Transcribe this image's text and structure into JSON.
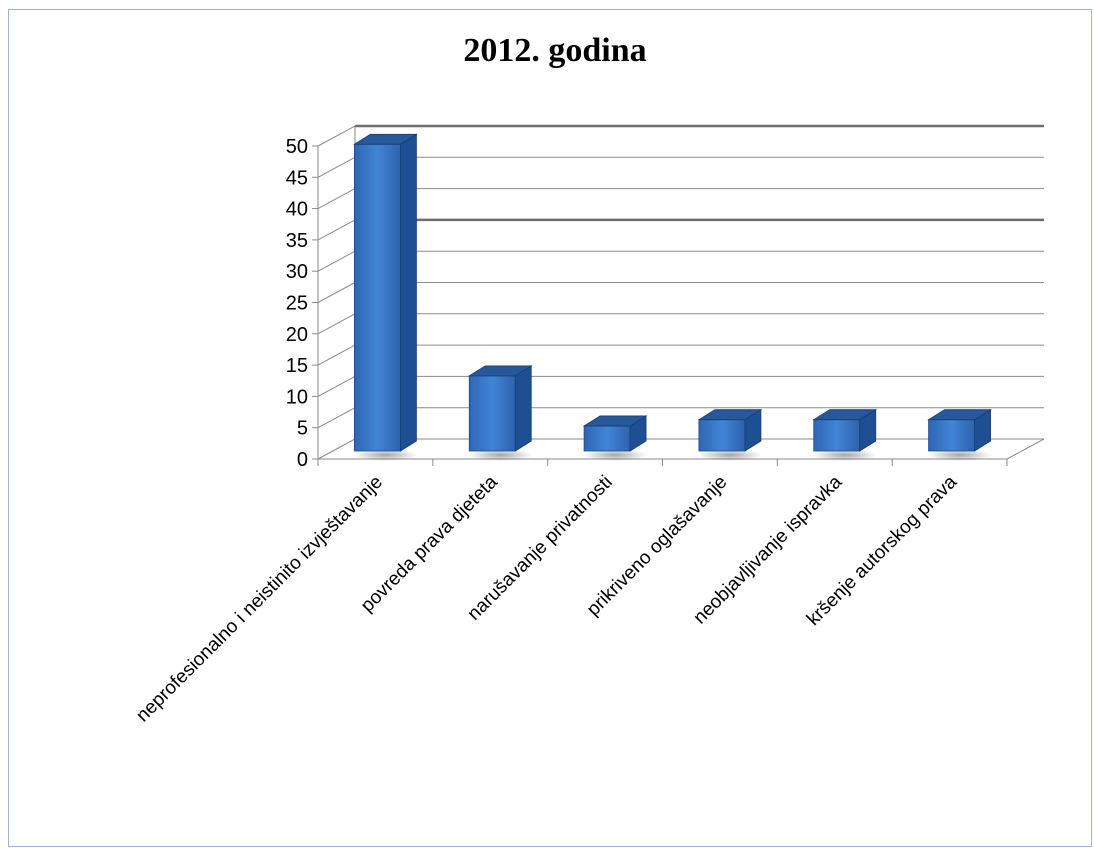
{
  "chart_data": {
    "type": "bar",
    "title": "2012. godina",
    "categories": [
      "neprofesionalno i neistinito izvještavanje",
      "povreda prava djeteta",
      "narušavanje privatnosti",
      "prikriveno oglašavanje",
      "neobjavljivanje ispravka",
      "kršenje autorskog prava"
    ],
    "values": [
      49,
      12,
      4,
      5,
      5,
      5
    ],
    "ylim": [
      0,
      50
    ],
    "yticks": [
      0,
      5,
      10,
      15,
      20,
      25,
      30,
      35,
      40,
      45,
      50
    ],
    "grid": true,
    "legend": "none",
    "colors": {
      "bar_front": "#3c78c8",
      "bar_side": "#1f4f93",
      "bar_top": "#27589c",
      "grid": "#8a8a8a"
    }
  }
}
